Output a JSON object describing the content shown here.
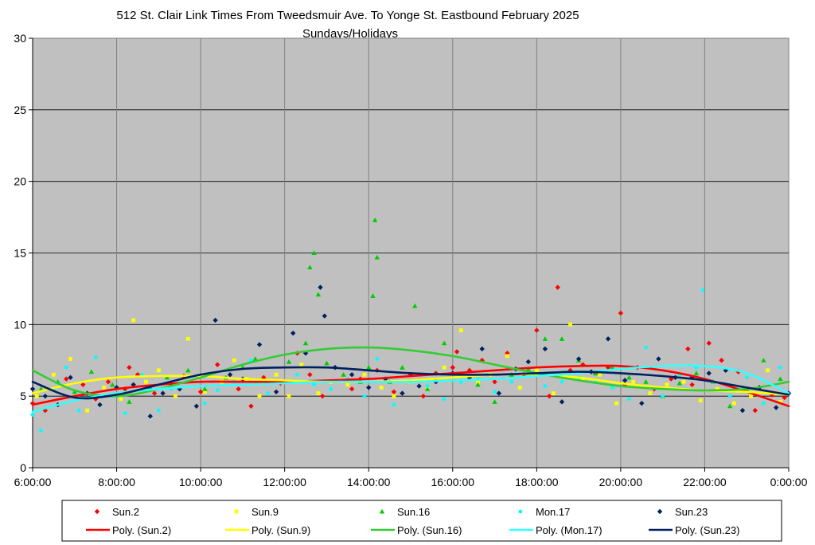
{
  "chart_data": {
    "type": "scatter",
    "title": "512 St. Clair Link Times From Tweedsmuir Ave. To Yonge St. Eastbound February 2025",
    "subtitle": "Sundays/Holidays",
    "xlabel": "",
    "ylabel": "",
    "xlim": [
      6,
      24
    ],
    "ylim": [
      0,
      30
    ],
    "x_ticks": [
      "6:00:00",
      "8:00:00",
      "10:00:00",
      "12:00:00",
      "14:00:00",
      "16:00:00",
      "18:00:00",
      "20:00:00",
      "22:00:00",
      "0:00:00"
    ],
    "y_ticks": [
      "0",
      "5",
      "10",
      "15",
      "20",
      "25",
      "30"
    ],
    "grid": true,
    "plot_background": "#c0c0c0",
    "legend_position": "bottom",
    "series": [
      {
        "name": "Sun.2",
        "color": "#ff0000",
        "marker": "diamond",
        "x": [
          6.0,
          6.3,
          6.8,
          7.2,
          7.5,
          7.8,
          8.2,
          8.3,
          8.5,
          8.9,
          9.3,
          9.6,
          10.0,
          10.4,
          10.9,
          11.2,
          11.5,
          11.9,
          12.3,
          12.6,
          12.9,
          13.2,
          13.6,
          13.8,
          14.2,
          14.6,
          15.0,
          15.3,
          15.6,
          16.0,
          16.1,
          16.4,
          16.7,
          17.0,
          17.3,
          17.7,
          18.0,
          18.3,
          18.5,
          18.8,
          19.1,
          19.4,
          19.7,
          20.0,
          20.1,
          20.4,
          20.8,
          21.2,
          21.6,
          21.7,
          22.1,
          22.4,
          22.8,
          23.2,
          23.6,
          23.9
        ],
        "y": [
          4.5,
          4.0,
          6.2,
          5.8,
          4.8,
          6.0,
          5.5,
          7.0,
          6.5,
          5.2,
          5.8,
          6.4,
          5.3,
          7.2,
          5.5,
          4.3,
          6.3,
          5.9,
          8.0,
          6.5,
          5.0,
          7.0,
          5.5,
          6.2,
          6.8,
          5.3,
          6.5,
          5.0,
          6.6,
          7.0,
          8.1,
          6.8,
          7.5,
          6.0,
          8.0,
          6.5,
          9.6,
          5.0,
          12.6,
          6.8,
          7.2,
          6.6,
          7.0,
          10.8,
          5.8,
          7.0,
          5.5,
          6.2,
          8.3,
          5.8,
          8.7,
          7.5,
          6.7,
          4.0,
          5.1,
          4.9
        ]
      },
      {
        "name": "Sun.9",
        "color": "#ffff00",
        "marker": "square",
        "x": [
          6.1,
          6.5,
          6.9,
          7.3,
          7.7,
          8.1,
          8.4,
          8.7,
          9.0,
          9.4,
          9.7,
          10.1,
          10.5,
          10.8,
          11.1,
          11.4,
          11.8,
          12.1,
          12.4,
          12.8,
          13.1,
          13.5,
          13.9,
          14.3,
          14.6,
          15.0,
          15.4,
          15.8,
          16.2,
          16.6,
          16.9,
          17.3,
          17.6,
          18.0,
          18.4,
          18.8,
          19.1,
          19.5,
          19.9,
          20.3,
          20.7,
          21.1,
          21.5,
          21.9,
          22.3,
          22.7,
          23.1,
          23.5,
          23.8
        ],
        "y": [
          5.0,
          6.5,
          7.6,
          4.0,
          5.6,
          4.8,
          10.3,
          6.0,
          6.8,
          5.0,
          9.0,
          5.3,
          6.0,
          7.5,
          6.2,
          5.0,
          6.5,
          5.0,
          7.2,
          5.2,
          6.0,
          5.8,
          6.5,
          5.6,
          5.0,
          6.0,
          5.5,
          7.0,
          9.6,
          6.0,
          6.5,
          7.8,
          5.6,
          6.8,
          5.2,
          10.0,
          6.2,
          6.5,
          4.5,
          6.0,
          5.2,
          5.8,
          6.0,
          4.7,
          5.5,
          4.5,
          5.0,
          6.8,
          4.6
        ]
      },
      {
        "name": "Sun.16",
        "color": "#00cc00",
        "marker": "triangle",
        "x": [
          6.2,
          6.6,
          7.0,
          7.4,
          7.9,
          8.3,
          8.8,
          9.2,
          9.7,
          10.1,
          10.6,
          11.0,
          11.3,
          11.7,
          12.1,
          12.5,
          12.6,
          12.7,
          12.8,
          13.0,
          13.4,
          13.8,
          14.0,
          14.1,
          14.15,
          14.2,
          14.5,
          14.8,
          15.1,
          15.4,
          15.8,
          16.2,
          16.6,
          17.0,
          17.4,
          17.8,
          18.2,
          18.6,
          19.0,
          19.4,
          19.8,
          20.2,
          20.6,
          21.0,
          21.4,
          21.8,
          22.2,
          22.6,
          23.0,
          23.4,
          23.8
        ],
        "y": [
          5.5,
          6.0,
          5.3,
          6.7,
          5.8,
          4.6,
          5.6,
          6.3,
          6.8,
          5.5,
          6.3,
          7.0,
          7.6,
          6.0,
          7.4,
          8.7,
          14.0,
          15.0,
          12.1,
          7.3,
          6.5,
          6.0,
          7.0,
          12.0,
          17.3,
          14.7,
          6.0,
          7.0,
          11.3,
          5.5,
          8.7,
          6.5,
          5.8,
          4.6,
          6.5,
          6.9,
          9.0,
          9.0,
          7.5,
          6.6,
          7.0,
          6.3,
          6.0,
          5.0,
          5.9,
          6.6,
          6.0,
          4.3,
          5.5,
          7.5,
          6.2
        ]
      },
      {
        "name": "Mon.17",
        "color": "#00ffff",
        "marker": "circle",
        "x": [
          6.0,
          6.2,
          6.5,
          6.8,
          7.1,
          7.5,
          7.9,
          8.2,
          8.6,
          9.0,
          9.3,
          9.7,
          10.1,
          10.4,
          10.8,
          11.2,
          11.6,
          12.0,
          12.3,
          12.7,
          13.1,
          13.5,
          13.9,
          14.2,
          14.6,
          15.0,
          15.4,
          15.8,
          16.2,
          16.6,
          17.0,
          17.4,
          17.8,
          18.2,
          18.6,
          19.0,
          19.4,
          19.8,
          20.2,
          20.6,
          21.0,
          21.4,
          21.8,
          21.95,
          22.2,
          22.6,
          23.0,
          23.4,
          23.8
        ],
        "y": [
          3.7,
          2.6,
          5.5,
          7.0,
          4.0,
          7.7,
          5.0,
          3.8,
          6.5,
          4.0,
          5.5,
          6.0,
          4.5,
          5.4,
          6.0,
          7.5,
          5.2,
          6.0,
          6.5,
          5.8,
          5.5,
          6.2,
          5.0,
          7.6,
          4.4,
          6.0,
          5.7,
          4.8,
          6.0,
          6.2,
          5.3,
          6.0,
          6.5,
          5.7,
          6.0,
          6.3,
          6.0,
          5.6,
          4.8,
          8.4,
          5.0,
          6.5,
          7.0,
          12.4,
          6.0,
          5.0,
          6.3,
          4.5,
          7.0
        ]
      },
      {
        "name": "Sun.23",
        "color": "#002060",
        "marker": "diamond",
        "x": [
          6.0,
          6.3,
          6.6,
          6.9,
          7.3,
          7.6,
          8.0,
          8.4,
          8.8,
          9.1,
          9.5,
          9.9,
          10.35,
          10.7,
          11.0,
          11.4,
          11.8,
          12.2,
          12.5,
          12.85,
          12.95,
          13.2,
          13.6,
          14.0,
          14.4,
          14.8,
          15.2,
          15.6,
          16.0,
          16.4,
          16.7,
          17.1,
          17.5,
          17.8,
          18.2,
          18.6,
          19.0,
          19.3,
          19.7,
          20.1,
          20.5,
          20.9,
          21.3,
          21.7,
          22.1,
          22.5,
          22.9,
          23.3,
          23.7,
          24.0
        ],
        "y": [
          5.5,
          5.0,
          4.4,
          6.3,
          5.2,
          4.4,
          5.6,
          5.8,
          3.6,
          5.2,
          5.5,
          4.3,
          10.3,
          6.5,
          6.2,
          8.6,
          5.3,
          9.4,
          8.0,
          12.6,
          10.6,
          7.0,
          6.5,
          5.6,
          6.2,
          5.2,
          5.7,
          6.0,
          6.6,
          6.3,
          8.3,
          5.2,
          6.9,
          7.4,
          8.3,
          4.6,
          7.6,
          6.7,
          9.0,
          6.1,
          4.5,
          7.6,
          6.3,
          6.3,
          6.6,
          6.8,
          4.0,
          5.6,
          4.2,
          5.2
        ]
      }
    ],
    "trendlines": [
      {
        "name": "Poly. (Sun.2)",
        "color": "#ff0000",
        "x": [
          6,
          7,
          8,
          9,
          10,
          11,
          12,
          13,
          14,
          15,
          16,
          17,
          18,
          19,
          20,
          21,
          22,
          23,
          24
        ],
        "y": [
          4.4,
          5.0,
          5.5,
          5.8,
          6.0,
          6.0,
          6.0,
          6.1,
          6.2,
          6.4,
          6.6,
          6.8,
          7.0,
          7.1,
          7.1,
          6.8,
          6.2,
          5.3,
          4.3
        ]
      },
      {
        "name": "Poly. (Sun.9)",
        "color": "#ffff00",
        "x": [
          6,
          7,
          8,
          9,
          10,
          11,
          12,
          13,
          14,
          15,
          16,
          17,
          18,
          19,
          20,
          21,
          22,
          23,
          24
        ],
        "y": [
          5.2,
          5.9,
          6.3,
          6.4,
          6.4,
          6.2,
          6.1,
          6.0,
          6.0,
          6.1,
          6.3,
          6.5,
          6.5,
          6.3,
          5.9,
          5.6,
          5.4,
          5.3,
          5.1
        ]
      },
      {
        "name": "Poly. (Sun.16)",
        "color": "#33cc33",
        "x": [
          6,
          7,
          8,
          9,
          10,
          11,
          12,
          13,
          14,
          15,
          16,
          17,
          18,
          19,
          20,
          21,
          22,
          23,
          24
        ],
        "y": [
          6.8,
          5.4,
          5.0,
          5.5,
          6.3,
          7.2,
          7.9,
          8.3,
          8.4,
          8.2,
          7.8,
          7.2,
          6.6,
          6.1,
          5.7,
          5.5,
          5.4,
          5.5,
          6.0
        ]
      },
      {
        "name": "Poly. (Mon.17)",
        "color": "#33ffff",
        "x": [
          6,
          7,
          8,
          9,
          10,
          11,
          12,
          13,
          14,
          15,
          16,
          17,
          18,
          19,
          20,
          21,
          22,
          23,
          24
        ],
        "y": [
          3.9,
          4.7,
          5.2,
          5.5,
          5.7,
          5.8,
          5.9,
          6.0,
          6.0,
          6.0,
          6.1,
          6.2,
          6.4,
          6.6,
          6.9,
          7.1,
          7.1,
          6.6,
          5.2
        ]
      },
      {
        "name": "Poly. (Sun.23)",
        "color": "#002060",
        "x": [
          6,
          7,
          8,
          9,
          10,
          11,
          12,
          13,
          14,
          15,
          16,
          17,
          18,
          19,
          20,
          21,
          22,
          23,
          24
        ],
        "y": [
          6.0,
          4.9,
          5.1,
          5.8,
          6.5,
          6.9,
          7.0,
          7.0,
          6.8,
          6.6,
          6.5,
          6.5,
          6.6,
          6.7,
          6.6,
          6.4,
          6.1,
          5.6,
          5.1
        ]
      }
    ]
  }
}
